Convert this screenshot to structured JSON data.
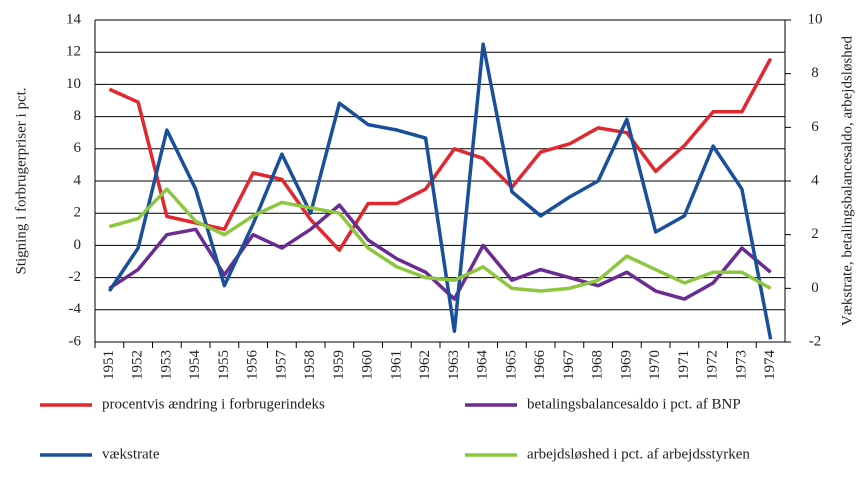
{
  "chart_data": {
    "type": "line",
    "ylabel": "Stigning i forbrugerpriser i pct.",
    "y2label": "Vækstrate, betalingsbalancesaldo, arbejdsløshed",
    "categories": [
      "1951",
      "1952",
      "1953",
      "1954",
      "1955",
      "1956",
      "1957",
      "1958",
      "1959",
      "1960",
      "1961",
      "1962",
      "1963",
      "1964",
      "1965",
      "1966",
      "1967",
      "1968",
      "1969",
      "1970",
      "1971",
      "1972",
      "1973",
      "1974"
    ],
    "ylim": [
      -6,
      14
    ],
    "yticks": [
      -6,
      -4,
      -2,
      0,
      2,
      4,
      6,
      8,
      10,
      12,
      14
    ],
    "y2lim": [
      -2,
      10
    ],
    "y2ticks": [
      -2,
      0,
      2,
      4,
      6,
      8,
      10
    ],
    "grid": true,
    "series": [
      {
        "name": "procentvis ændring i forbrugerindeks",
        "color": "#e0282e",
        "values": [
          9.7,
          8.9,
          1.8,
          1.4,
          1.0,
          4.5,
          4.1,
          1.6,
          -0.3,
          2.6,
          2.6,
          3.5,
          6.0,
          5.4,
          3.6,
          5.8,
          6.3,
          7.3,
          7.0,
          4.6,
          6.2,
          8.3,
          8.3,
          11.6
        ]
      },
      {
        "name": "betalingsbalancesaldo i pct. af BNP",
        "color": "#6b2c91",
        "axis": "y2",
        "values": [
          0.0,
          0.7,
          2.0,
          2.2,
          0.5,
          2.0,
          1.5,
          2.2,
          3.1,
          1.8,
          1.1,
          0.6,
          -0.4,
          1.6,
          0.3,
          0.7,
          0.4,
          0.1,
          0.6,
          -0.1,
          -0.4,
          0.2,
          1.5,
          0.6
        ]
      },
      {
        "name": "vækstrate",
        "color": "#1a4f9c",
        "axis": "y2",
        "values": [
          -0.1,
          1.5,
          5.9,
          3.7,
          0.1,
          2.4,
          5.0,
          2.8,
          6.9,
          6.1,
          5.9,
          5.6,
          -1.6,
          9.1,
          3.6,
          2.7,
          3.4,
          4.0,
          6.3,
          2.1,
          2.7,
          5.3,
          3.7,
          -1.9
        ]
      },
      {
        "name": "arbejdsløshed i pct. af arbejdsstyrken",
        "color": "#8dc63f",
        "axis": "y2",
        "values": [
          2.3,
          2.6,
          3.7,
          2.5,
          2.0,
          2.7,
          3.2,
          3.0,
          2.8,
          1.5,
          0.8,
          0.4,
          0.3,
          0.8,
          0.0,
          -0.1,
          0.0,
          0.3,
          1.2,
          0.7,
          0.2,
          0.6,
          0.6,
          0.0
        ]
      }
    ]
  }
}
